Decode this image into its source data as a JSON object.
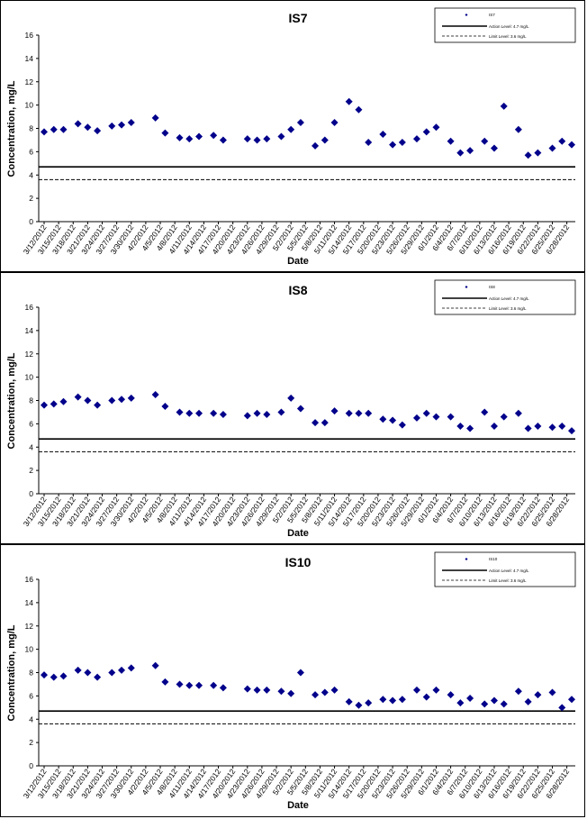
{
  "colors": {
    "marker": "#00008b",
    "line": "#000000",
    "frame": "#000000"
  },
  "chart_data": [
    {
      "type": "scatter",
      "title": "IS7",
      "xlabel": "Date",
      "ylabel": "Concentration, mg/L",
      "ylim": [
        0,
        16
      ],
      "yticks": [
        "0",
        "2",
        "4",
        "6",
        "8",
        "10",
        "12",
        "14",
        "16"
      ],
      "xlim": [
        "3/12/2012",
        "6/29/2012"
      ],
      "xticks": [
        "3/12/2012",
        "3/15/2012",
        "3/18/2012",
        "3/21/2012",
        "3/24/2012",
        "3/27/2012",
        "3/30/2012",
        "4/2/2012",
        "4/5/2012",
        "4/8/2012",
        "4/11/2012",
        "4/14/2012",
        "4/17/2012",
        "4/20/2012",
        "4/23/2012",
        "4/26/2012",
        "4/29/2012",
        "5/2/2012",
        "5/5/2012",
        "5/8/2012",
        "5/11/2012",
        "5/14/2012",
        "5/17/2012",
        "5/20/2012",
        "5/23/2012",
        "5/26/2012",
        "5/29/2012",
        "6/1/2012",
        "6/4/2012",
        "6/7/2012",
        "6/10/2012",
        "6/13/2012",
        "6/16/2012",
        "6/19/2012",
        "6/22/2012",
        "6/25/2012",
        "6/28/2012"
      ],
      "legend": {
        "position": "top-right",
        "items": [
          "IS7",
          "Action Level: 4.7 mg/L",
          "Limit Level: 3.6 mg/L"
        ]
      },
      "series": [
        {
          "name": "IS7",
          "x": [
            "3/12/2012",
            "3/14/2012",
            "3/16/2012",
            "3/19/2012",
            "3/21/2012",
            "3/23/2012",
            "3/26/2012",
            "3/28/2012",
            "3/30/2012",
            "4/4/2012",
            "4/6/2012",
            "4/9/2012",
            "4/11/2012",
            "4/13/2012",
            "4/16/2012",
            "4/18/2012",
            "4/23/2012",
            "4/25/2012",
            "4/27/2012",
            "4/30/2012",
            "5/2/2012",
            "5/4/2012",
            "5/7/2012",
            "5/9/2012",
            "5/11/2012",
            "5/14/2012",
            "5/16/2012",
            "5/18/2012",
            "5/21/2012",
            "5/23/2012",
            "5/25/2012",
            "5/28/2012",
            "5/30/2012",
            "6/1/2012",
            "6/4/2012",
            "6/6/2012",
            "6/8/2012",
            "6/11/2012",
            "6/13/2012",
            "6/15/2012",
            "6/18/2012",
            "6/20/2012",
            "6/22/2012",
            "6/25/2012",
            "6/27/2012",
            "6/29/2012"
          ],
          "y": [
            7.7,
            7.9,
            7.9,
            8.4,
            8.1,
            7.8,
            8.2,
            8.3,
            8.5,
            8.9,
            7.6,
            7.2,
            7.1,
            7.3,
            7.4,
            7.0,
            7.1,
            7.0,
            7.1,
            7.3,
            7.9,
            8.5,
            6.5,
            7.0,
            8.5,
            10.3,
            9.6,
            6.8,
            7.5,
            6.6,
            6.8,
            7.1,
            7.7,
            8.1,
            6.9,
            5.9,
            6.1,
            6.9,
            6.3,
            9.9,
            7.9,
            5.7,
            5.9,
            6.3,
            6.9,
            6.6
          ]
        },
        {
          "name": "Action Level: 4.7 mg/L",
          "y": 4.7
        },
        {
          "name": "Limit Level: 3.6 mg/L",
          "y": 3.6
        }
      ]
    },
    {
      "type": "scatter",
      "title": "IS8",
      "xlabel": "Date",
      "ylabel": "Concentration, mg/L",
      "ylim": [
        0,
        16
      ],
      "yticks": [
        "0",
        "2",
        "4",
        "6",
        "8",
        "10",
        "12",
        "14",
        "16"
      ],
      "xlim": [
        "3/12/2012",
        "6/29/2012"
      ],
      "xticks": [
        "3/12/2012",
        "3/15/2012",
        "3/18/2012",
        "3/21/2012",
        "3/24/2012",
        "3/27/2012",
        "3/30/2012",
        "4/2/2012",
        "4/5/2012",
        "4/8/2012",
        "4/11/2012",
        "4/14/2012",
        "4/17/2012",
        "4/20/2012",
        "4/23/2012",
        "4/26/2012",
        "4/29/2012",
        "5/2/2012",
        "5/5/2012",
        "5/8/2012",
        "5/11/2012",
        "5/14/2012",
        "5/17/2012",
        "5/20/2012",
        "5/23/2012",
        "5/26/2012",
        "5/29/2012",
        "6/1/2012",
        "6/4/2012",
        "6/7/2012",
        "6/10/2012",
        "6/13/2012",
        "6/16/2012",
        "6/19/2012",
        "6/22/2012",
        "6/25/2012",
        "6/28/2012"
      ],
      "legend": {
        "position": "top-right",
        "items": [
          "IS8",
          "Action Level: 4.7 mg/L",
          "Limit Level: 3.6 mg/L"
        ]
      },
      "series": [
        {
          "name": "IS8",
          "x": [
            "3/12/2012",
            "3/14/2012",
            "3/16/2012",
            "3/19/2012",
            "3/21/2012",
            "3/23/2012",
            "3/26/2012",
            "3/28/2012",
            "3/30/2012",
            "4/4/2012",
            "4/6/2012",
            "4/9/2012",
            "4/11/2012",
            "4/13/2012",
            "4/16/2012",
            "4/18/2012",
            "4/23/2012",
            "4/25/2012",
            "4/27/2012",
            "4/30/2012",
            "5/2/2012",
            "5/4/2012",
            "5/7/2012",
            "5/9/2012",
            "5/11/2012",
            "5/14/2012",
            "5/16/2012",
            "5/18/2012",
            "5/21/2012",
            "5/23/2012",
            "5/25/2012",
            "5/28/2012",
            "5/30/2012",
            "6/1/2012",
            "6/4/2012",
            "6/6/2012",
            "6/8/2012",
            "6/11/2012",
            "6/13/2012",
            "6/15/2012",
            "6/18/2012",
            "6/20/2012",
            "6/22/2012",
            "6/25/2012",
            "6/27/2012",
            "6/29/2012"
          ],
          "y": [
            7.6,
            7.7,
            7.9,
            8.3,
            8.0,
            7.6,
            8.0,
            8.1,
            8.2,
            8.5,
            7.5,
            7.0,
            6.9,
            6.9,
            6.9,
            6.8,
            6.7,
            6.9,
            6.8,
            7.0,
            8.2,
            7.3,
            6.1,
            6.1,
            7.1,
            6.9,
            6.9,
            6.9,
            6.4,
            6.3,
            5.9,
            6.5,
            6.9,
            6.6,
            6.6,
            5.8,
            5.6,
            7.0,
            5.8,
            6.6,
            6.9,
            5.6,
            5.8,
            5.7,
            5.8,
            5.4
          ]
        },
        {
          "name": "Action Level: 4.7 mg/L",
          "y": 4.7
        },
        {
          "name": "Limit Level: 3.6 mg/L",
          "y": 3.6
        }
      ]
    },
    {
      "type": "scatter",
      "title": "IS10",
      "xlabel": "Date",
      "ylabel": "Concentration, mg/L",
      "ylim": [
        0,
        16
      ],
      "yticks": [
        "0",
        "2",
        "4",
        "6",
        "8",
        "10",
        "12",
        "14",
        "16"
      ],
      "xlim": [
        "3/12/2012",
        "6/29/2012"
      ],
      "xticks": [
        "3/12/2012",
        "3/15/2012",
        "3/18/2012",
        "3/21/2012",
        "3/24/2012",
        "3/27/2012",
        "3/30/2012",
        "4/2/2012",
        "4/5/2012",
        "4/8/2012",
        "4/11/2012",
        "4/14/2012",
        "4/17/2012",
        "4/20/2012",
        "4/23/2012",
        "4/26/2012",
        "4/29/2012",
        "5/2/2012",
        "5/5/2012",
        "5/8/2012",
        "5/11/2012",
        "5/14/2012",
        "5/17/2012",
        "5/20/2012",
        "5/23/2012",
        "5/26/2012",
        "5/29/2012",
        "6/1/2012",
        "6/4/2012",
        "6/7/2012",
        "6/10/2012",
        "6/13/2012",
        "6/16/2012",
        "6/19/2012",
        "6/22/2012",
        "6/25/2012",
        "6/28/2012"
      ],
      "legend": {
        "position": "top-right",
        "items": [
          "IS10",
          "Action Level: 4.7 mg/L",
          "Limit Level: 3.6 mg/L"
        ]
      },
      "series": [
        {
          "name": "IS10",
          "x": [
            "3/12/2012",
            "3/14/2012",
            "3/16/2012",
            "3/19/2012",
            "3/21/2012",
            "3/23/2012",
            "3/26/2012",
            "3/28/2012",
            "3/30/2012",
            "4/4/2012",
            "4/6/2012",
            "4/9/2012",
            "4/11/2012",
            "4/13/2012",
            "4/16/2012",
            "4/18/2012",
            "4/23/2012",
            "4/25/2012",
            "4/27/2012",
            "4/30/2012",
            "5/2/2012",
            "5/4/2012",
            "5/7/2012",
            "5/9/2012",
            "5/11/2012",
            "5/14/2012",
            "5/16/2012",
            "5/18/2012",
            "5/21/2012",
            "5/23/2012",
            "5/25/2012",
            "5/28/2012",
            "5/30/2012",
            "6/1/2012",
            "6/4/2012",
            "6/6/2012",
            "6/8/2012",
            "6/11/2012",
            "6/13/2012",
            "6/15/2012",
            "6/18/2012",
            "6/20/2012",
            "6/22/2012",
            "6/25/2012",
            "6/27/2012",
            "6/29/2012"
          ],
          "y": [
            7.8,
            7.6,
            7.7,
            8.2,
            8.0,
            7.6,
            8.0,
            8.2,
            8.4,
            8.6,
            7.2,
            7.0,
            6.9,
            6.9,
            6.9,
            6.7,
            6.6,
            6.5,
            6.5,
            6.4,
            6.2,
            8.0,
            6.1,
            6.3,
            6.5,
            5.5,
            5.2,
            5.4,
            5.7,
            5.6,
            5.7,
            6.5,
            5.9,
            6.5,
            6.1,
            5.4,
            5.8,
            5.3,
            5.6,
            5.3,
            6.4,
            5.5,
            6.1,
            6.3,
            5.0,
            5.7
          ]
        },
        {
          "name": "Action Level: 4.7 mg/L",
          "y": 4.7
        },
        {
          "name": "Limit Level: 3.6 mg/L",
          "y": 3.6
        }
      ]
    }
  ]
}
